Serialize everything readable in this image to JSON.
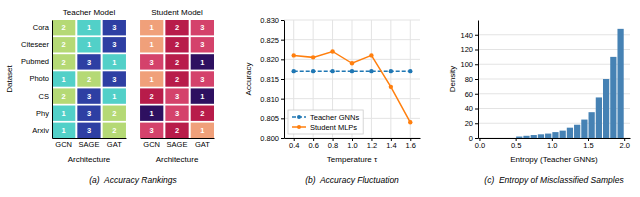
{
  "chart_data": [
    {
      "type": "heatmap",
      "title": "(a)  Accuracy Rankings",
      "xlabel": "Architecture",
      "ylabel": "Dataset",
      "x_categories": [
        "GCN",
        "SAGE",
        "GAT"
      ],
      "y_categories": [
        "Cora",
        "Citeseer",
        "Pubmed",
        "Photo",
        "CS",
        "Phy",
        "Arxiv"
      ],
      "data_labels": true,
      "series": [
        {
          "name": "Teacher Model",
          "values": [
            [
              2,
              1,
              3
            ],
            [
              2,
              1,
              3
            ],
            [
              2,
              3,
              1
            ],
            [
              1,
              2,
              3
            ],
            [
              2,
              3,
              1
            ],
            [
              1,
              3,
              2
            ],
            [
              1,
              3,
              2
            ]
          ],
          "colors": [
            [
              "#b5d975",
              "#52d0c8",
              "#2e3fa3"
            ],
            [
              "#b5d975",
              "#52d0c8",
              "#2e3fa3"
            ],
            [
              "#b5d975",
              "#2e3fa3",
              "#52d0c8"
            ],
            [
              "#52d0c8",
              "#b5d975",
              "#2e3fa3"
            ],
            [
              "#b5d975",
              "#2e3fa3",
              "#52d0c8"
            ],
            [
              "#52d0c8",
              "#2e3fa3",
              "#b5d975"
            ],
            [
              "#52d0c8",
              "#2e3fa3",
              "#b5d975"
            ]
          ]
        },
        {
          "name": "Student Model",
          "values": [
            [
              1,
              2,
              3
            ],
            [
              1,
              2,
              3
            ],
            [
              3,
              2,
              1
            ],
            [
              1,
              2,
              3
            ],
            [
              2,
              3,
              1
            ],
            [
              1,
              3,
              2
            ],
            [
              3,
              2,
              1
            ]
          ],
          "colors": [
            [
              "#f0a07a",
              "#b81c4a",
              "#d4426b"
            ],
            [
              "#f0a07a",
              "#b81c4a",
              "#d4426b"
            ],
            [
              "#d4426b",
              "#b81c4a",
              "#2e1060"
            ],
            [
              "#f0a07a",
              "#b81c4a",
              "#d4426b"
            ],
            [
              "#b81c4a",
              "#d4426b",
              "#2e1060"
            ],
            [
              "#2e1060",
              "#d4426b",
              "#b81c4a"
            ],
            [
              "#d4426b",
              "#b81c4a",
              "#f0a07a"
            ]
          ]
        }
      ]
    },
    {
      "type": "line",
      "title": "(b)  Accuracy Fluctuation",
      "xlabel": "Temperature τ",
      "ylabel": "Accuracy",
      "x": [
        0.4,
        0.6,
        0.8,
        1.0,
        1.2,
        1.4,
        1.6
      ],
      "xlim": [
        0.3,
        1.7
      ],
      "xticks": [
        0.4,
        0.6,
        0.8,
        {
          "value": 1.0,
          "label": "1.0"
        },
        1.2,
        1.4,
        1.6
      ],
      "ylim": [
        0.8,
        0.83
      ],
      "yticks": [
        {
          "value": 0.8,
          "label": "0.800"
        },
        0.805,
        {
          "value": 0.81,
          "label": "0.810"
        },
        0.815,
        {
          "value": 0.82,
          "label": "0.820"
        },
        0.825,
        {
          "value": 0.83,
          "label": "0.830"
        }
      ],
      "grid": true,
      "legend": "lower left",
      "series": [
        {
          "name": "Teacher GNNs",
          "values": [
            0.817,
            0.817,
            0.817,
            0.817,
            0.817,
            0.817,
            0.817
          ],
          "line_style": "dashed",
          "marker": "circle"
        },
        {
          "name": "Student MLPs",
          "values": [
            0.821,
            0.8205,
            0.822,
            0.819,
            0.821,
            0.813,
            0.804
          ],
          "line_style": "solid",
          "marker": "circle"
        }
      ]
    },
    {
      "type": "histogram",
      "title": "(c)  Entropy of Misclassified Samples",
      "xlabel": "Entropy (Teacher GNNs)",
      "ylabel": "Density",
      "bins": [
        0.0,
        0.1,
        0.2,
        0.3,
        0.4,
        0.5,
        0.6,
        0.7,
        0.8,
        0.9,
        1.0,
        1.1,
        1.2,
        1.3,
        1.4,
        1.5,
        1.6,
        1.7,
        1.8,
        1.9,
        2.0
      ],
      "values": [
        0,
        0,
        0,
        0,
        0,
        2,
        3,
        4,
        5,
        6,
        8,
        10,
        14,
        18,
        25,
        35,
        55,
        80,
        110,
        148
      ],
      "xlim": [
        -0.02,
        2.08
      ],
      "xticks": [
        {
          "value": 0.0,
          "label": "0.0"
        },
        0.5,
        {
          "value": 1.0,
          "label": "1.0"
        },
        1.5,
        {
          "value": 2.0,
          "label": "2.0"
        }
      ],
      "ylim": [
        0,
        160
      ],
      "yticks": [
        0,
        20,
        40,
        60,
        80,
        100,
        120,
        140
      ],
      "grid": "y"
    }
  ]
}
